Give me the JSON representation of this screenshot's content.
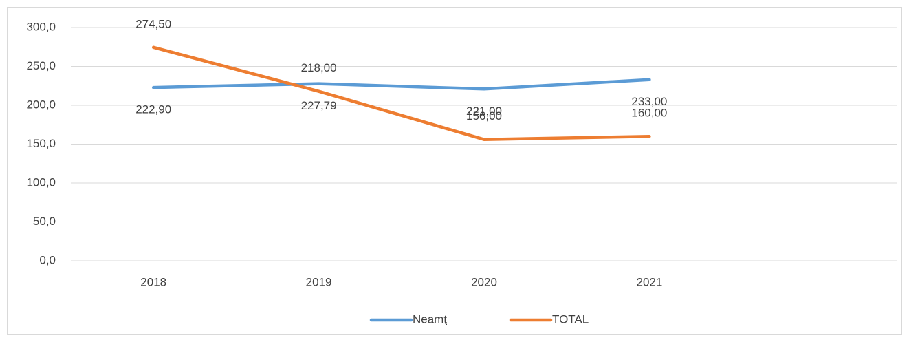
{
  "chart_data": {
    "type": "line",
    "categories": [
      "2018",
      "2019",
      "2020",
      "2021",
      null
    ],
    "series": [
      {
        "name": "Neamţ",
        "color": "#5b9bd5",
        "values": [
          222.9,
          227.79,
          221.0,
          233.0,
          null
        ],
        "value_labels": [
          "222,90",
          "227,79",
          "221,00",
          "233,00",
          null
        ]
      },
      {
        "name": "TOTAL",
        "color": "#ed7d31",
        "values": [
          274.5,
          218.0,
          156.0,
          160.0,
          null
        ],
        "value_labels": [
          "274,50",
          "218,00",
          "156,00",
          "160,00",
          null
        ]
      }
    ],
    "ylim": [
      0,
      300
    ],
    "yticks": [
      {
        "value": 0,
        "label": "0,0"
      },
      {
        "value": 50,
        "label": "50,0"
      },
      {
        "value": 100,
        "label": "100,0"
      },
      {
        "value": 150,
        "label": "150,0"
      },
      {
        "value": 200,
        "label": "200,0"
      },
      {
        "value": 250,
        "label": "250,0"
      },
      {
        "value": 300,
        "label": "300,0"
      }
    ],
    "grid": true,
    "legend": "bottom"
  }
}
